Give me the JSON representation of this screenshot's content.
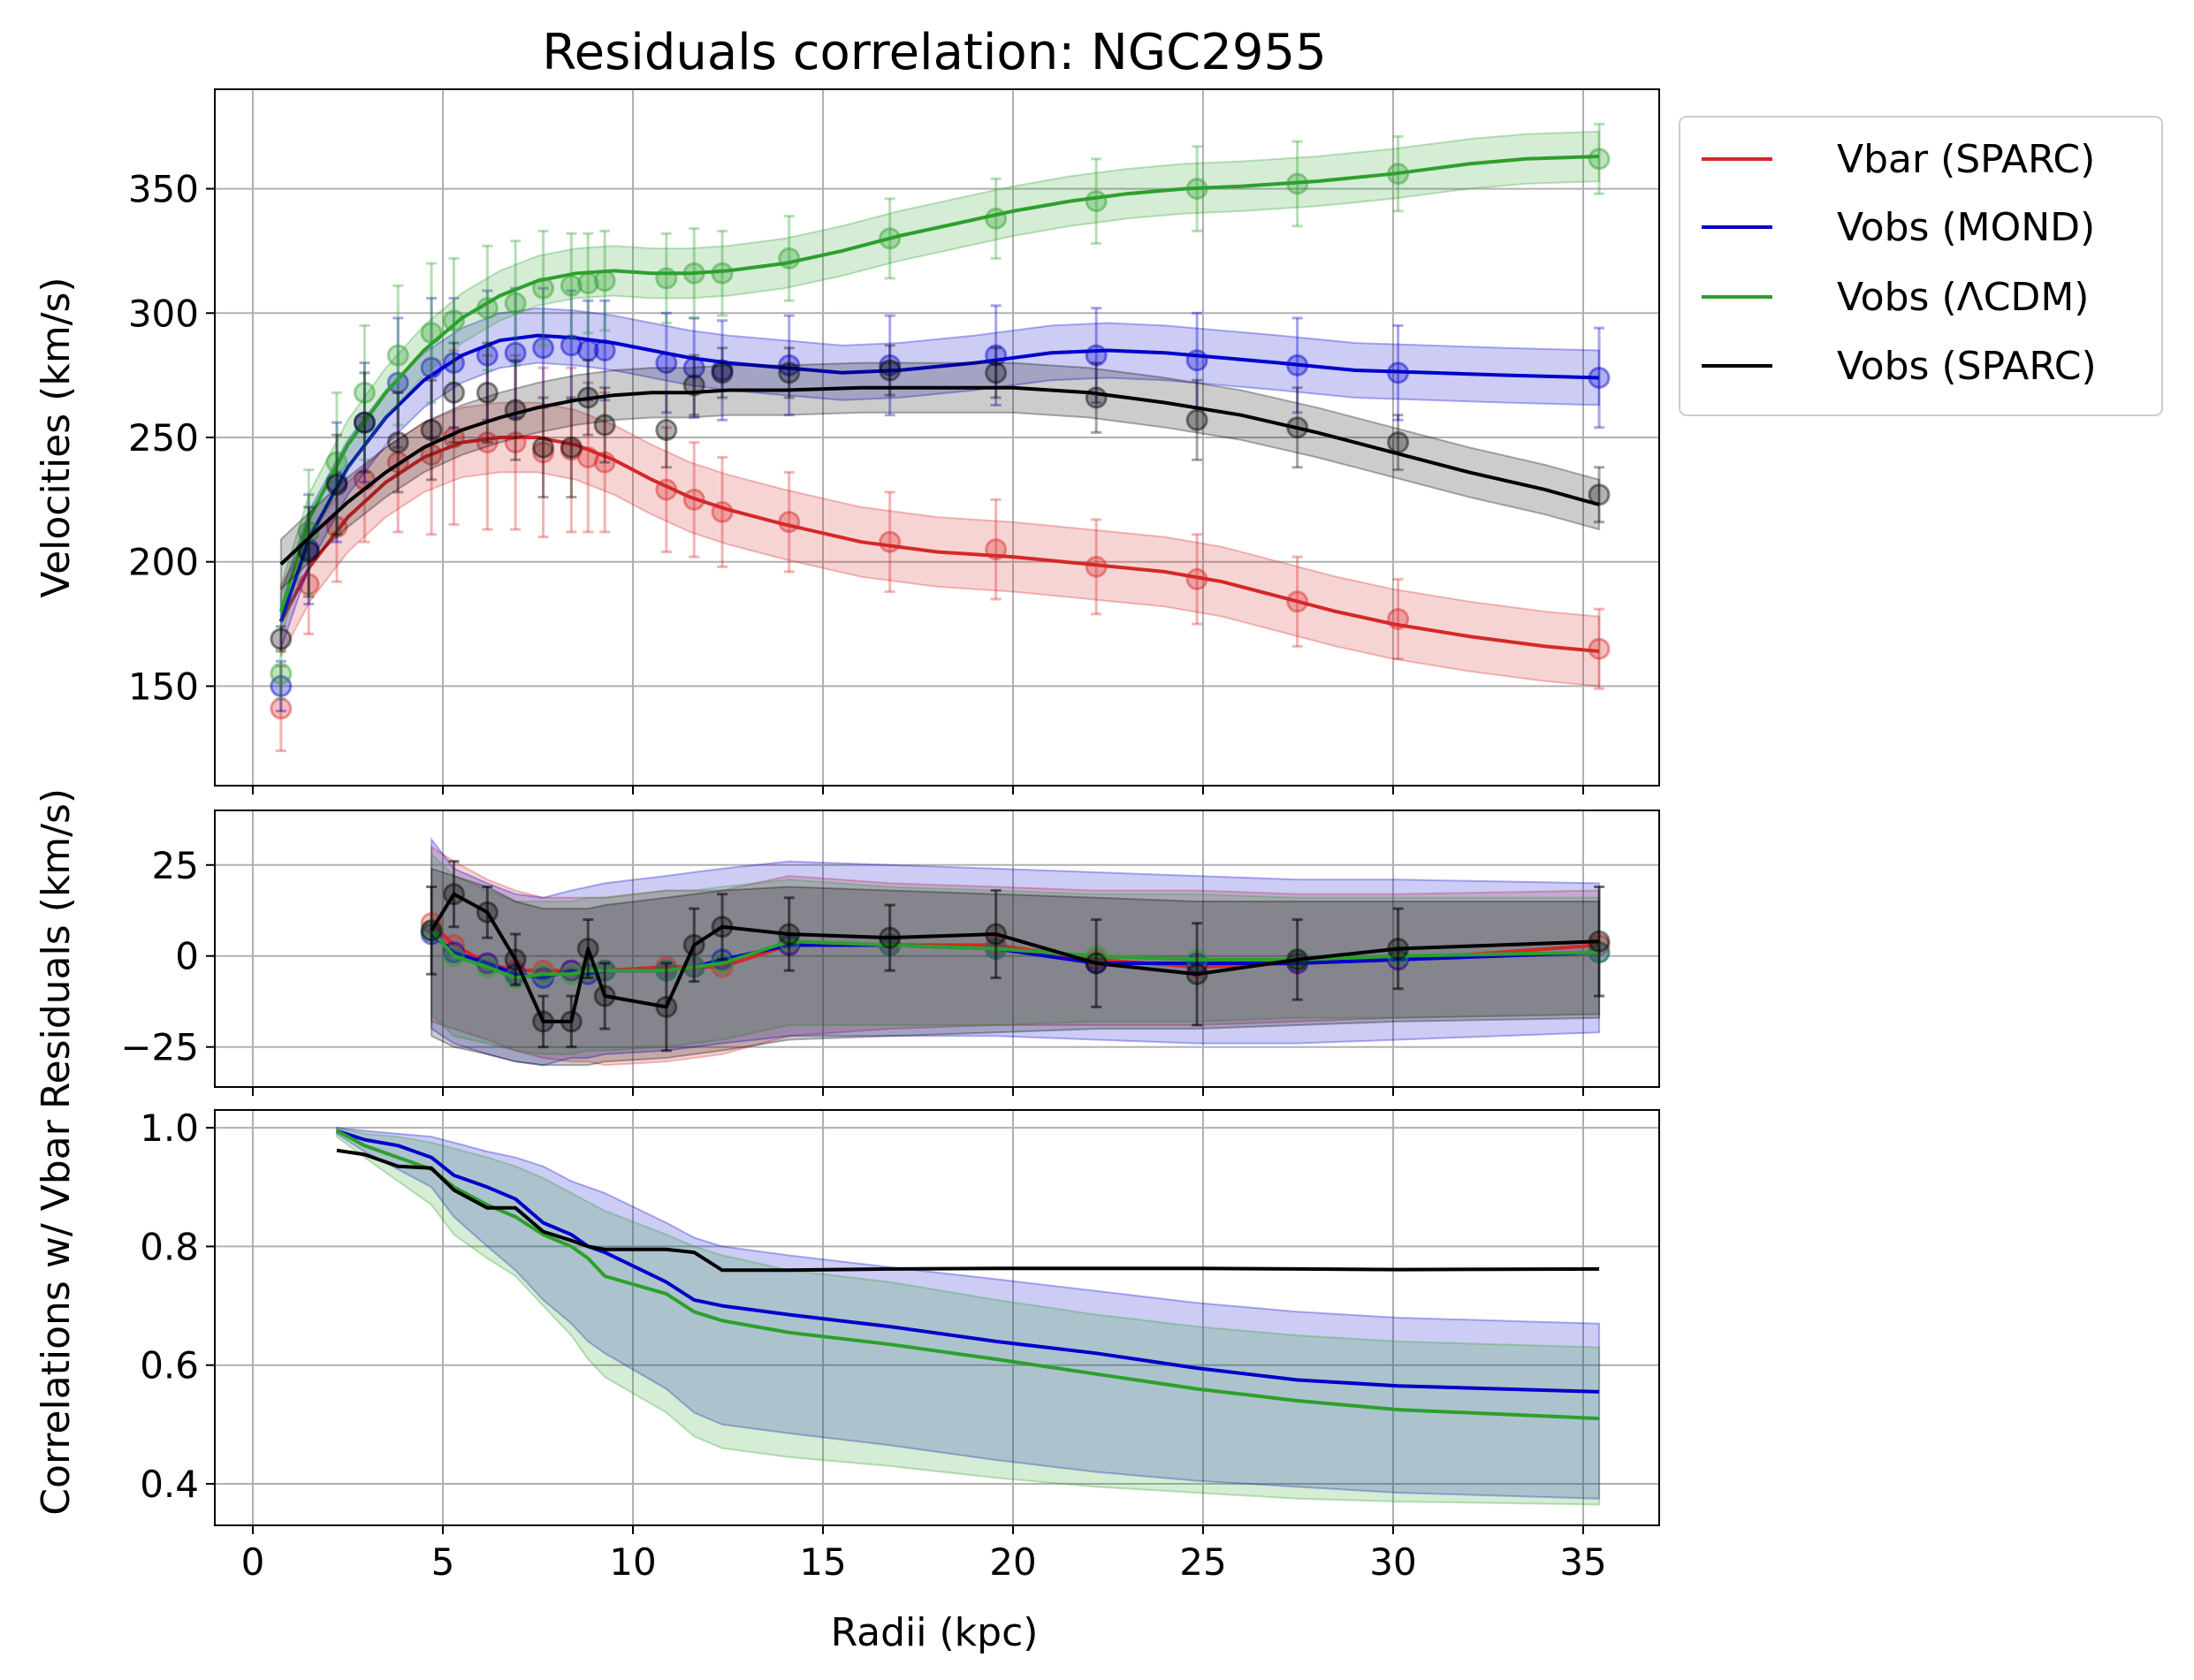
{
  "chart_data": [
    {
      "type": "line",
      "title": "Residuals correlation: NGC2955",
      "xlabel": "",
      "ylabel": "Velocities (km/s)",
      "xlim": [
        -1,
        37
      ],
      "ylim": [
        110,
        390
      ],
      "xticks": [
        0,
        5,
        10,
        15,
        20,
        25,
        30,
        35
      ],
      "yticks": [
        150,
        200,
        250,
        300,
        350
      ],
      "grid": true,
      "legend_position": "outside-right-top",
      "x": [
        0.74,
        1.47,
        2.21,
        2.94,
        3.82,
        4.7,
        5.29,
        6.17,
        6.91,
        7.64,
        8.38,
        8.82,
        9.26,
        10.88,
        11.61,
        12.35,
        14.11,
        16.76,
        19.55,
        22.19,
        24.84,
        27.48,
        30.13,
        35.42
      ],
      "series": [
        {
          "name": "Vbar (SPARC)",
          "color": "#d62728",
          "points": [
            141,
            191,
            214,
            233,
            240,
            243,
            250,
            248,
            248,
            244,
            245,
            242,
            240,
            229,
            225,
            220,
            216,
            208,
            205,
            198,
            193,
            184,
            177,
            165
          ],
          "errors": [
            17,
            20,
            22,
            25,
            28,
            32,
            35,
            35,
            35,
            34,
            33,
            30,
            28,
            25,
            23,
            22,
            20,
            20,
            20,
            19,
            18,
            18,
            16,
            16
          ],
          "curve_x": [
            0.74,
            1.5,
            2.5,
            3.5,
            4.5,
            5.5,
            6.5,
            7.5,
            8.5,
            9.5,
            10.5,
            11.5,
            12.5,
            14.0,
            16.0,
            18.0,
            20.0,
            22.0,
            24.0,
            25.5,
            27.0,
            28.5,
            30.0,
            32.0,
            34.0,
            35.42
          ],
          "curve": [
            176,
            198,
            218,
            232,
            242,
            248,
            250,
            250,
            247,
            241,
            233,
            226,
            221,
            215,
            208,
            204,
            202,
            199,
            196,
            192,
            186,
            180,
            175,
            170,
            166,
            164
          ],
          "band": 14
        },
        {
          "name": "Vobs (MOND)",
          "color": "#0000cc",
          "points": [
            150,
            205,
            232,
            256,
            272,
            278,
            280,
            283,
            284,
            286,
            287,
            285,
            285,
            280,
            278,
            277,
            279,
            279,
            283,
            283,
            281,
            279,
            276,
            274
          ],
          "errors": [
            10,
            22,
            24,
            24,
            26,
            28,
            26,
            26,
            26,
            24,
            22,
            20,
            20,
            20,
            20,
            20,
            20,
            20,
            20,
            19,
            19,
            19,
            19,
            20
          ],
          "curve_x": [
            0.74,
            1.5,
            2.5,
            3.5,
            4.5,
            5.5,
            6.5,
            7.5,
            8.5,
            9.5,
            10.5,
            11.5,
            12.5,
            14.0,
            15.5,
            17.0,
            19.0,
            21.0,
            22.5,
            24.0,
            25.5,
            27.0,
            29.0,
            31.0,
            33.0,
            35.42
          ],
          "curve": [
            176,
            210,
            238,
            258,
            273,
            283,
            289,
            291,
            290,
            288,
            285,
            282,
            280,
            278,
            276,
            277,
            280,
            284,
            285,
            284,
            282,
            280,
            277,
            276,
            275,
            274
          ],
          "band": 11
        },
        {
          "name": "Vobs (ΛCDM)",
          "color": "#2ca02c",
          "points": [
            155,
            212,
            240,
            268,
            283,
            292,
            297,
            302,
            304,
            310,
            311,
            312,
            313,
            314,
            316,
            316,
            322,
            330,
            338,
            345,
            350,
            352,
            356,
            362
          ],
          "errors": [
            10,
            25,
            28,
            27,
            28,
            28,
            25,
            25,
            25,
            23,
            21,
            20,
            20,
            18,
            18,
            17,
            17,
            16,
            16,
            17,
            17,
            17,
            15,
            14
          ],
          "curve_x": [
            0.74,
            1.5,
            2.5,
            3.5,
            4.5,
            5.5,
            6.5,
            7.5,
            8.5,
            9.5,
            10.5,
            11.5,
            12.5,
            14.0,
            15.5,
            17.0,
            18.5,
            20.0,
            21.5,
            23.0,
            24.5,
            26.0,
            28.0,
            30.0,
            32.0,
            33.5,
            35.42
          ],
          "curve": [
            180,
            218,
            247,
            268,
            285,
            298,
            307,
            313,
            316,
            317,
            316,
            316,
            317,
            320,
            325,
            331,
            336,
            341,
            345,
            348,
            350,
            351,
            353,
            356,
            360,
            362,
            363
          ],
          "band": 10
        },
        {
          "name": "Vobs (SPARC)",
          "color": "#000000",
          "points": [
            169,
            204,
            231,
            256,
            248,
            253,
            268,
            268,
            261,
            246,
            246,
            266,
            255,
            253,
            271,
            276,
            276,
            277,
            276,
            266,
            257,
            254,
            248,
            227
          ],
          "errors": [
            5,
            18,
            20,
            20,
            20,
            20,
            20,
            20,
            20,
            20,
            20,
            15,
            15,
            15,
            12,
            10,
            10,
            10,
            10,
            14,
            16,
            16,
            11,
            11
          ],
          "curve_x": [
            0.74,
            1.5,
            2.5,
            3.5,
            4.5,
            5.5,
            6.5,
            7.5,
            8.5,
            9.5,
            10.5,
            11.5,
            12.5,
            14.0,
            16.0,
            18.0,
            20.0,
            22.0,
            24.0,
            26.0,
            28.0,
            30.0,
            32.0,
            34.0,
            35.42
          ],
          "curve": [
            199,
            210,
            224,
            236,
            246,
            253,
            258,
            262,
            265,
            267,
            268,
            268,
            269,
            269,
            270,
            270,
            270,
            268,
            264,
            259,
            252,
            244,
            236,
            229,
            223
          ],
          "band": 10
        }
      ]
    },
    {
      "type": "line",
      "xlabel": "",
      "ylabel": "Residuals (km/s)",
      "xlim": [
        -1,
        37
      ],
      "ylim": [
        -36,
        40
      ],
      "xticks": [
        0,
        5,
        10,
        15,
        20,
        25,
        30,
        35
      ],
      "yticks": [
        -25,
        0,
        25
      ],
      "grid": true,
      "x": [
        4.7,
        5.29,
        6.17,
        6.91,
        7.64,
        8.38,
        8.82,
        9.26,
        10.88,
        11.61,
        12.35,
        14.11,
        16.76,
        19.55,
        22.19,
        24.84,
        27.48,
        30.13,
        35.42
      ],
      "series": [
        {
          "name": "Vbar (SPARC)",
          "color": "#d62728",
          "values": [
            9,
            3,
            -2,
            -4,
            -4,
            -4,
            -4,
            -4,
            -3,
            -3,
            -3,
            3,
            3,
            3,
            -1,
            -3,
            -2,
            -1,
            3
          ],
          "band_upper": [
            30,
            26,
            21,
            18,
            16,
            16,
            16,
            16,
            18,
            18,
            18,
            22,
            20,
            19,
            18,
            18,
            17,
            17,
            18
          ],
          "band_lower": [
            -18,
            -20,
            -23,
            -26,
            -28,
            -29,
            -29,
            -30,
            -29,
            -28,
            -27,
            -22,
            -20,
            -19,
            -19,
            -19,
            -18,
            -17,
            -16
          ]
        },
        {
          "name": "Vobs (MOND)",
          "color": "#0000cc",
          "values": [
            6,
            1,
            -2,
            -5,
            -6,
            -4,
            -5,
            -4,
            -4,
            -3,
            -1,
            3,
            3,
            2,
            -2,
            -2,
            -2,
            -1,
            1
          ],
          "band_upper": [
            32,
            24,
            20,
            17,
            16,
            18,
            19,
            20,
            22,
            23,
            24,
            26,
            25,
            24,
            23,
            22,
            21,
            21,
            20
          ],
          "band_lower": [
            -20,
            -24,
            -27,
            -29,
            -30,
            -28,
            -28,
            -27,
            -26,
            -25,
            -24,
            -22,
            -22,
            -22,
            -23,
            -24,
            -24,
            -23,
            -21
          ]
        },
        {
          "name": "Vobs (ΛCDM)",
          "color": "#2ca02c",
          "values": [
            7,
            0,
            -3,
            -6,
            -5,
            -5,
            -4,
            -4,
            -4,
            -3,
            -2,
            4,
            3,
            2,
            0,
            -1,
            -1,
            0,
            1
          ],
          "band_upper": [
            28,
            22,
            18,
            15,
            15,
            15,
            16,
            16,
            18,
            18,
            19,
            21,
            19,
            18,
            17,
            17,
            16,
            16,
            16
          ],
          "band_lower": [
            -16,
            -22,
            -24,
            -26,
            -27,
            -27,
            -26,
            -26,
            -25,
            -24,
            -23,
            -19,
            -19,
            -19,
            -18,
            -18,
            -17,
            -17,
            -16
          ]
        },
        {
          "name": "Vobs (SPARC)",
          "color": "#000000",
          "values": [
            7,
            17,
            12,
            -1,
            -18,
            -18,
            2,
            -11,
            -14,
            3,
            8,
            6,
            5,
            6,
            -2,
            -5,
            -1,
            2,
            4
          ],
          "errors": [
            12,
            9,
            7,
            7,
            7,
            7,
            8,
            9,
            12,
            10,
            9,
            10,
            9,
            12,
            12,
            14,
            11,
            11,
            15
          ],
          "band_upper": [
            24,
            22,
            19,
            15,
            13,
            13,
            13,
            14,
            16,
            17,
            18,
            19,
            18,
            17,
            16,
            15,
            15,
            15,
            15
          ],
          "band_lower": [
            -22,
            -25,
            -27,
            -29,
            -30,
            -30,
            -30,
            -29,
            -28,
            -27,
            -26,
            -23,
            -22,
            -21,
            -20,
            -20,
            -19,
            -18,
            -17
          ]
        }
      ]
    },
    {
      "type": "line",
      "xlabel": "Radii (kpc)",
      "ylabel": "Correlations w/ Vbar",
      "xlim": [
        -1,
        37
      ],
      "ylim": [
        0.33,
        1.03
      ],
      "xticks": [
        0,
        5,
        10,
        15,
        20,
        25,
        30,
        35
      ],
      "yticks": [
        0.4,
        0.6,
        0.8,
        1.0
      ],
      "grid": true,
      "x": [
        2.21,
        2.94,
        3.82,
        4.7,
        5.29,
        6.17,
        6.91,
        7.64,
        8.38,
        8.82,
        9.26,
        10.88,
        11.61,
        12.35,
        14.11,
        16.76,
        19.55,
        22.19,
        24.84,
        27.48,
        30.13,
        35.42
      ],
      "series": [
        {
          "name": "Vobs (MOND)",
          "color": "#0000cc",
          "values": [
            0.995,
            0.98,
            0.97,
            0.95,
            0.92,
            0.9,
            0.88,
            0.84,
            0.82,
            0.8,
            0.79,
            0.74,
            0.71,
            0.7,
            0.685,
            0.665,
            0.64,
            0.62,
            0.595,
            0.575,
            0.565,
            0.555
          ],
          "band_upper": [
            1.0,
            0.995,
            0.99,
            0.985,
            0.975,
            0.96,
            0.95,
            0.935,
            0.91,
            0.9,
            0.89,
            0.84,
            0.815,
            0.8,
            0.785,
            0.765,
            0.745,
            0.725,
            0.705,
            0.69,
            0.68,
            0.67
          ],
          "band_lower": [
            0.99,
            0.96,
            0.93,
            0.9,
            0.85,
            0.8,
            0.76,
            0.71,
            0.67,
            0.64,
            0.62,
            0.56,
            0.52,
            0.5,
            0.485,
            0.465,
            0.44,
            0.42,
            0.405,
            0.395,
            0.385,
            0.375
          ]
        },
        {
          "name": "Vobs (ΛCDM)",
          "color": "#2ca02c",
          "values": [
            0.995,
            0.97,
            0.95,
            0.93,
            0.9,
            0.87,
            0.85,
            0.82,
            0.8,
            0.78,
            0.75,
            0.72,
            0.69,
            0.675,
            0.655,
            0.635,
            0.61,
            0.585,
            0.56,
            0.54,
            0.525,
            0.51
          ],
          "band_upper": [
            1.0,
            0.99,
            0.985,
            0.975,
            0.965,
            0.95,
            0.935,
            0.915,
            0.89,
            0.875,
            0.86,
            0.82,
            0.8,
            0.785,
            0.76,
            0.74,
            0.71,
            0.685,
            0.665,
            0.65,
            0.64,
            0.63
          ],
          "band_lower": [
            0.985,
            0.95,
            0.91,
            0.87,
            0.82,
            0.78,
            0.75,
            0.7,
            0.65,
            0.61,
            0.58,
            0.52,
            0.48,
            0.46,
            0.445,
            0.43,
            0.41,
            0.395,
            0.385,
            0.375,
            0.37,
            0.365
          ]
        },
        {
          "name": "Vobs (SPARC)",
          "color": "#000000",
          "values": [
            0.962,
            0.955,
            0.935,
            0.932,
            0.895,
            0.865,
            0.865,
            0.825,
            0.81,
            0.8,
            0.795,
            0.795,
            0.79,
            0.76,
            0.76,
            0.762,
            0.763,
            0.763,
            0.763,
            0.762,
            0.761,
            0.762
          ]
        }
      ]
    }
  ]
}
